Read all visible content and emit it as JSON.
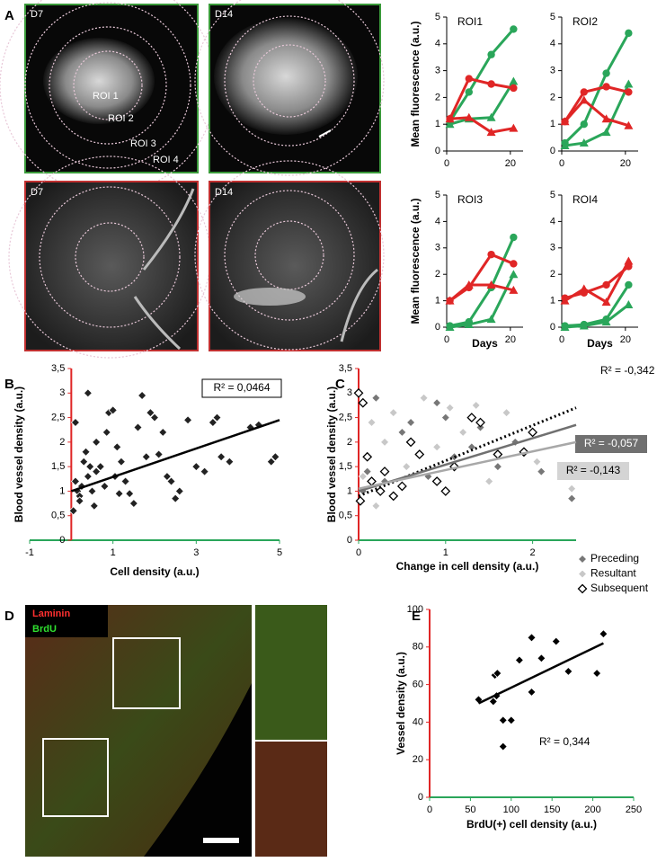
{
  "panels": [
    "A",
    "B",
    "C",
    "D",
    "E"
  ],
  "images": [
    {
      "label": "D7"
    },
    {
      "label": "D14"
    },
    {
      "label": "D7"
    },
    {
      "label": "D14"
    }
  ],
  "roi_labels": [
    "ROI 1",
    "ROI 2",
    "ROI 3",
    "ROI 4"
  ],
  "stains": [
    "Laminin",
    "BrdU"
  ],
  "chart_data": [
    {
      "type": "line",
      "title": "ROI1",
      "ylabel": "Mean fluorescence (a.u.)",
      "x": [
        1,
        7,
        14,
        21
      ],
      "xlim": [
        0,
        24
      ],
      "xticks": [
        0,
        20
      ],
      "ylim": [
        0,
        5
      ],
      "yticks": [
        0,
        1,
        2,
        3,
        4,
        5
      ],
      "series": [
        {
          "color": "#2aa65a",
          "marker": "circle",
          "values": [
            1.1,
            2.2,
            3.6,
            4.55
          ]
        },
        {
          "color": "#2aa65a",
          "marker": "triangle",
          "values": [
            1.0,
            1.2,
            1.25,
            2.6
          ]
        },
        {
          "color": "#e02626",
          "marker": "circle",
          "values": [
            1.2,
            2.7,
            2.5,
            2.35
          ]
        },
        {
          "color": "#e02626",
          "marker": "triangle",
          "values": [
            1.2,
            1.25,
            0.7,
            0.85
          ]
        }
      ]
    },
    {
      "type": "line",
      "title": "ROI2",
      "x": [
        1,
        7,
        14,
        21
      ],
      "xlim": [
        0,
        24
      ],
      "xticks": [
        0,
        20
      ],
      "ylim": [
        0,
        5
      ],
      "yticks": [
        0,
        1,
        2,
        3,
        4,
        5
      ],
      "series": [
        {
          "color": "#2aa65a",
          "marker": "circle",
          "values": [
            0.3,
            1.0,
            2.9,
            4.4
          ]
        },
        {
          "color": "#2aa65a",
          "marker": "triangle",
          "values": [
            0.2,
            0.3,
            0.7,
            2.5
          ]
        },
        {
          "color": "#e02626",
          "marker": "circle",
          "values": [
            1.1,
            2.2,
            2.4,
            2.2
          ]
        },
        {
          "color": "#e02626",
          "marker": "triangle",
          "values": [
            1.1,
            1.9,
            1.2,
            0.95
          ]
        }
      ]
    },
    {
      "type": "line",
      "title": "ROI3",
      "ylabel": "Mean fluorescence (a.u.)",
      "xlabel": "Days",
      "x": [
        1,
        7,
        14,
        21
      ],
      "xlim": [
        0,
        24
      ],
      "xticks": [
        0,
        20
      ],
      "ylim": [
        0,
        5
      ],
      "yticks": [
        0,
        1,
        2,
        3,
        4,
        5
      ],
      "series": [
        {
          "color": "#2aa65a",
          "marker": "circle",
          "values": [
            0.05,
            0.2,
            1.5,
            3.4
          ]
        },
        {
          "color": "#2aa65a",
          "marker": "triangle",
          "values": [
            0.0,
            0.1,
            0.3,
            2.0
          ]
        },
        {
          "color": "#e02626",
          "marker": "circle",
          "values": [
            1.0,
            1.5,
            2.75,
            2.4
          ]
        },
        {
          "color": "#e02626",
          "marker": "triangle",
          "values": [
            1.0,
            1.6,
            1.6,
            1.4
          ]
        }
      ]
    },
    {
      "type": "line",
      "title": "ROI4",
      "xlabel": "Days",
      "x": [
        1,
        7,
        14,
        21
      ],
      "xlim": [
        0,
        24
      ],
      "xticks": [
        0,
        20
      ],
      "ylim": [
        0,
        5
      ],
      "yticks": [
        0,
        1,
        2,
        3,
        4,
        5
      ],
      "series": [
        {
          "color": "#2aa65a",
          "marker": "circle",
          "values": [
            0.05,
            0.1,
            0.3,
            1.6
          ]
        },
        {
          "color": "#2aa65a",
          "marker": "triangle",
          "values": [
            0.0,
            0.05,
            0.2,
            0.85
          ]
        },
        {
          "color": "#e02626",
          "marker": "circle",
          "values": [
            1.1,
            1.3,
            1.6,
            2.3
          ]
        },
        {
          "color": "#e02626",
          "marker": "triangle",
          "values": [
            1.0,
            1.45,
            0.95,
            2.5
          ]
        }
      ]
    },
    {
      "type": "scatter",
      "ylabel": "Blood vessel density (a.u.)",
      "xlabel": "Cell density (a.u.)",
      "xlim": [
        -1,
        5
      ],
      "xticks": [
        -1,
        1,
        3,
        5
      ],
      "ylim": [
        0,
        3.5
      ],
      "yticks": [
        0,
        {
          "value": 0.5,
          "label": "0,5"
        },
        1,
        {
          "value": 1.5,
          "label": "1,5"
        },
        2,
        {
          "value": 2.5,
          "label": "2,5"
        },
        3,
        {
          "value": 3.5,
          "label": "3,5"
        }
      ],
      "y_axis_color": "#e02626",
      "x_axis_color": "#2aa65a",
      "series": [
        {
          "color": "#222",
          "marker": "diamond",
          "x": [
            0.1,
            0.4,
            0.1,
            0.15,
            0.2,
            0.25,
            0.3,
            0.35,
            0.4,
            0.5,
            0.55,
            0.6,
            0.7,
            0.8,
            0.85,
            0.9,
            1.0,
            1.05,
            1.1,
            1.2,
            1.3,
            1.4,
            1.5,
            1.6,
            1.7,
            1.8,
            1.9,
            2.0,
            2.1,
            2.2,
            2.3,
            2.5,
            2.6,
            2.8,
            3.0,
            3.2,
            3.4,
            3.5,
            3.6,
            3.8,
            4.3,
            4.5,
            4.8,
            4.9,
            0.05,
            0.2,
            0.6,
            1.15,
            0.45,
            2.4
          ],
          "values": [
            2.4,
            3.0,
            1.2,
            1.0,
            0.9,
            1.1,
            1.6,
            1.8,
            1.3,
            1.0,
            0.7,
            2.0,
            1.5,
            1.1,
            2.2,
            2.6,
            2.65,
            1.3,
            1.9,
            1.6,
            1.2,
            0.95,
            0.75,
            2.3,
            2.95,
            1.7,
            2.6,
            2.5,
            1.75,
            2.2,
            1.3,
            0.85,
            1.0,
            2.45,
            1.5,
            1.4,
            2.4,
            2.5,
            1.7,
            1.6,
            2.3,
            2.35,
            1.6,
            1.7,
            0.6,
            0.8,
            1.4,
            0.95,
            1.5,
            1.2
          ]
        }
      ],
      "trendlines": [
        {
          "color": "#000",
          "style": "solid",
          "x": [
            0,
            5
          ],
          "values": [
            1.0,
            2.45
          ],
          "label": "R² = 0,0464",
          "label_bg": "#fff"
        }
      ]
    },
    {
      "type": "scatter",
      "ylabel": "Blood vessel density (a.u.)",
      "xlabel": "Change in cell density   (a.u.)",
      "xlim": [
        0,
        2.5
      ],
      "xticks": [
        0,
        1,
        2
      ],
      "ylim": [
        0,
        3.5
      ],
      "yticks": [
        0,
        {
          "value": 0.5,
          "label": "0,5"
        },
        1,
        {
          "value": 1.5,
          "label": "1,5"
        },
        2,
        {
          "value": 2.5,
          "label": "2,5"
        },
        3,
        {
          "value": 3.5,
          "label": "3,5"
        }
      ],
      "y_axis_color": "#e02626",
      "x_axis_color": "#2aa65a",
      "series": [
        {
          "name": "Preceding",
          "color": "#777",
          "marker": "diamond",
          "x": [
            0.05,
            0.1,
            0.2,
            0.3,
            0.5,
            0.6,
            0.8,
            1.0,
            1.1,
            1.3,
            1.4,
            1.6,
            1.8,
            2.1,
            2.45,
            0.9
          ],
          "values": [
            1.0,
            1.4,
            2.9,
            1.2,
            2.2,
            2.4,
            1.3,
            2.5,
            1.7,
            1.9,
            2.3,
            1.5,
            2.0,
            1.4,
            0.85,
            2.8
          ]
        },
        {
          "name": "Resultant",
          "color": "#c8c8c8",
          "marker": "diamond",
          "x": [
            0.05,
            0.15,
            0.3,
            0.4,
            0.55,
            0.75,
            0.9,
            1.05,
            1.2,
            1.35,
            1.5,
            1.7,
            1.9,
            2.05,
            2.45,
            0.2
          ],
          "values": [
            1.3,
            2.4,
            2.0,
            2.6,
            1.5,
            2.9,
            1.9,
            2.7,
            2.2,
            2.75,
            1.2,
            2.6,
            1.8,
            1.6,
            1.05,
            0.7
          ]
        },
        {
          "name": "Subsequent",
          "color": "#000",
          "marker": "diamond-open",
          "x": [
            0.0,
            0.05,
            0.1,
            0.15,
            0.25,
            0.3,
            0.4,
            0.5,
            0.6,
            0.7,
            0.9,
            1.0,
            1.1,
            1.3,
            1.4,
            1.6,
            1.9,
            2.0,
            0.02
          ],
          "values": [
            3.0,
            2.8,
            1.7,
            1.2,
            1.0,
            1.4,
            0.9,
            1.1,
            2.0,
            1.75,
            1.2,
            1.0,
            1.5,
            2.5,
            2.4,
            1.75,
            1.8,
            2.2,
            0.8
          ]
        }
      ],
      "trendlines": [
        {
          "color": "#000",
          "style": "dotted",
          "x": [
            0,
            2.5
          ],
          "values": [
            0.9,
            2.7
          ],
          "label": "R² = -0,342"
        },
        {
          "color": "#707070",
          "style": "solid",
          "x": [
            0,
            2.5
          ],
          "values": [
            1.0,
            2.35
          ],
          "label": "R² = -0,057",
          "label_bg": "#707070"
        },
        {
          "color": "#a8a8a8",
          "style": "solid",
          "x": [
            0,
            2.5
          ],
          "values": [
            1.05,
            2.0
          ],
          "label": "R² = -0,143",
          "label_bg": "#d4d4d4"
        }
      ]
    },
    {
      "type": "scatter",
      "ylabel": "Vessel density (a.u.)",
      "xlabel": "BrdU(+) cell density (a.u.)",
      "xlim": [
        0,
        250
      ],
      "xticks": [
        0,
        50,
        100,
        150,
        200,
        250
      ],
      "ylim": [
        0,
        100
      ],
      "yticks": [
        0,
        20,
        40,
        60,
        80,
        100
      ],
      "y_axis_color": "#e02626",
      "x_axis_color": "#2aa65a",
      "series": [
        {
          "color": "#000",
          "marker": "diamond",
          "x": [
            60,
            78,
            80,
            83,
            82,
            90,
            90,
            100,
            110,
            125,
            125,
            137,
            155,
            170,
            205,
            213
          ],
          "values": [
            52,
            51,
            65,
            66,
            54,
            41,
            27,
            41,
            73,
            85,
            56,
            74,
            83,
            67,
            66,
            87
          ]
        }
      ],
      "trendlines": [
        {
          "color": "#000",
          "style": "solid",
          "x": [
            60,
            213
          ],
          "values": [
            50,
            82
          ],
          "label": "R² = 0,344"
        }
      ]
    }
  ]
}
